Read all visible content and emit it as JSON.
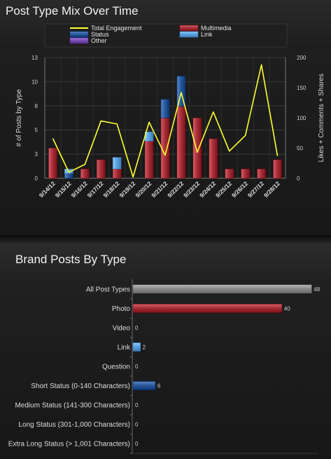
{
  "top_panel": {
    "title": "Post Type Mix Over Time"
  },
  "bottom_panel": {
    "title": "Brand Posts By Type"
  },
  "colors": {
    "multimedia": "#a8323c",
    "status": "#2c5b9c",
    "link": "#5ea2e0",
    "other": "#7a4fb3",
    "engagement": "#ffff33",
    "all_post_types": "#8c8c8c"
  },
  "chart_data": [
    {
      "type": "bar",
      "stacked": true,
      "title": "Post Type Mix Over Time",
      "ylabel": "# of Posts by Type",
      "y2label": "Likes + Comments + Shares",
      "ylim": [
        0,
        13
      ],
      "y2lim": [
        0,
        200
      ],
      "yticks": [
        "0",
        "3",
        "5",
        "8",
        "10",
        "13"
      ],
      "y2ticks": [
        "0",
        "50",
        "100",
        "150",
        "200"
      ],
      "legend_position": "top",
      "grid": true,
      "categories": [
        "9/14/12",
        "9/15/12",
        "9/16/12",
        "9/17/12",
        "9/18/12",
        "9/19/12",
        "9/20/12",
        "9/21/12",
        "9/22/12",
        "9/23/12",
        "9/24/12",
        "9/25/12",
        "9/26/12",
        "9/27/12",
        "9/28/12"
      ],
      "series": [
        {
          "name": "Multimedia",
          "key": "multimedia",
          "values": [
            3.25,
            0,
            1,
            2,
            1,
            0,
            4,
            6.5,
            7.75,
            6.5,
            4.25,
            1,
            1,
            1,
            2
          ]
        },
        {
          "name": "Status",
          "key": "status",
          "values": [
            0,
            0.5,
            0,
            0,
            0,
            0,
            0,
            2,
            3.25,
            0,
            0,
            0,
            0,
            0,
            0
          ]
        },
        {
          "name": "Link",
          "key": "link",
          "values": [
            0,
            0.5,
            0,
            0,
            1.25,
            0,
            1,
            0,
            0,
            0,
            0,
            0,
            0,
            0,
            0
          ]
        },
        {
          "name": "Other",
          "key": "other",
          "values": [
            0,
            0,
            0,
            0,
            0,
            0,
            0,
            0,
            0,
            0,
            0,
            0,
            0,
            0,
            0
          ]
        }
      ],
      "line": {
        "name": "Total Engagement",
        "key": "engagement",
        "axis": "right",
        "values": [
          66,
          10,
          23,
          95,
          90,
          2,
          93,
          38,
          142,
          43,
          110,
          45,
          71,
          188,
          37
        ]
      }
    },
    {
      "type": "bar",
      "orientation": "horizontal",
      "title": "Brand Posts By Type",
      "xlim": [
        0,
        50
      ],
      "categories": [
        "All Post Types",
        "Photo",
        "Video",
        "Link",
        "Question",
        "Short Status (0-140 Characters)",
        "Medium Status (141-300 Characters)",
        "Long Status (301-1,000 Characters)",
        "Extra Long Status (> 1,001 Characters)"
      ],
      "values": [
        48,
        40,
        0,
        2,
        0,
        6,
        0,
        0,
        0
      ],
      "color_keys": [
        "all_post_types",
        "multimedia",
        "multimedia",
        "link",
        "multimedia",
        "status",
        "status",
        "status",
        "status"
      ]
    }
  ]
}
